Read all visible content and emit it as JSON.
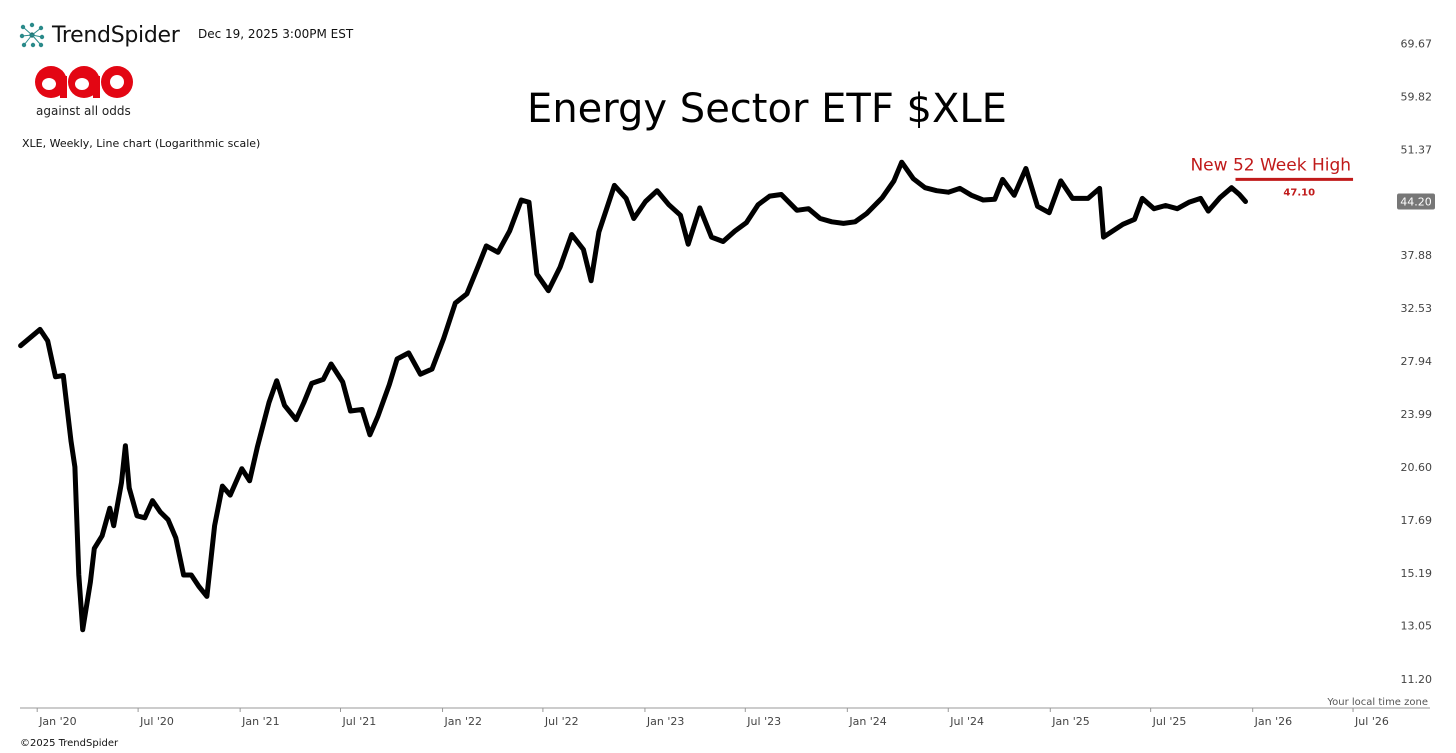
{
  "header": {
    "brand": "TrendSpider",
    "timestamp": "Dec 19, 2025 3:00PM EST",
    "logo_tagline": "against all odds"
  },
  "footer": {
    "timezone_note": "Your local time zone",
    "copyright": "©2025 TrendSpider"
  },
  "colors": {
    "line": "#000000",
    "annotation": "#c01a1a",
    "aao_red": "#e30613",
    "last_box": "#777777",
    "brand_teal": "#2a8a8a"
  },
  "chart_data": {
    "type": "line",
    "title": "Energy Sector ETF $XLE",
    "subtitle": "XLE, Weekly, Line chart (Logarithmic scale)",
    "y_scale": "log",
    "ylim": [
      10.3,
      74.5
    ],
    "xlim": [
      "2019-12-01",
      "2026-08-15"
    ],
    "y_ticks": [
      "69.67",
      "59.82",
      "51.37",
      "44.20",
      "37.88",
      "32.53",
      "27.94",
      "23.99",
      "20.60",
      "17.69",
      "15.19",
      "13.05",
      "11.20"
    ],
    "x_ticks": [
      {
        "label": "Jan '20",
        "date": "2020-01-01"
      },
      {
        "label": "Jul '20",
        "date": "2020-07-01"
      },
      {
        "label": "Jan '21",
        "date": "2021-01-01"
      },
      {
        "label": "Jul '21",
        "date": "2021-07-01"
      },
      {
        "label": "Jan '22",
        "date": "2022-01-01"
      },
      {
        "label": "Jul '22",
        "date": "2022-07-01"
      },
      {
        "label": "Jan '23",
        "date": "2023-01-01"
      },
      {
        "label": "Jul '23",
        "date": "2023-07-01"
      },
      {
        "label": "Jan '24",
        "date": "2024-01-01"
      },
      {
        "label": "Jul '24",
        "date": "2024-07-01"
      },
      {
        "label": "Jan '25",
        "date": "2025-01-01"
      },
      {
        "label": "Jul '25",
        "date": "2025-07-01"
      },
      {
        "label": "Jan '26",
        "date": "2026-01-01"
      },
      {
        "label": "Jul '26",
        "date": "2026-07-01"
      }
    ],
    "last_value": "44.20",
    "annotation": {
      "text": "New 52 Week High",
      "value_label": "47.10",
      "value": 47.1,
      "x_start": "2025-12-01",
      "x_end": "2026-07-01"
    },
    "series": [
      {
        "points": [
          [
            "2019-12-02",
            29.2
          ],
          [
            "2020-01-06",
            30.6
          ],
          [
            "2020-01-20",
            29.6
          ],
          [
            "2020-02-03",
            26.7
          ],
          [
            "2020-02-17",
            26.8
          ],
          [
            "2020-03-02",
            22.2
          ],
          [
            "2020-03-09",
            20.6
          ],
          [
            "2020-03-16",
            15.1
          ],
          [
            "2020-03-23",
            12.9
          ],
          [
            "2020-04-06",
            14.8
          ],
          [
            "2020-04-13",
            16.3
          ],
          [
            "2020-04-27",
            16.9
          ],
          [
            "2020-05-11",
            18.3
          ],
          [
            "2020-05-18",
            17.4
          ],
          [
            "2020-06-01",
            19.7
          ],
          [
            "2020-06-08",
            21.9
          ],
          [
            "2020-06-15",
            19.4
          ],
          [
            "2020-06-29",
            17.9
          ],
          [
            "2020-07-13",
            17.8
          ],
          [
            "2020-07-27",
            18.7
          ],
          [
            "2020-08-10",
            18.1
          ],
          [
            "2020-08-24",
            17.7
          ],
          [
            "2020-09-07",
            16.8
          ],
          [
            "2020-09-21",
            15.1
          ],
          [
            "2020-10-05",
            15.1
          ],
          [
            "2020-10-19",
            14.6
          ],
          [
            "2020-11-02",
            14.2
          ],
          [
            "2020-11-16",
            17.4
          ],
          [
            "2020-11-30",
            19.5
          ],
          [
            "2020-12-14",
            19.0
          ],
          [
            "2021-01-04",
            20.5
          ],
          [
            "2021-01-18",
            19.8
          ],
          [
            "2021-02-01",
            21.8
          ],
          [
            "2021-02-22",
            24.8
          ],
          [
            "2021-03-08",
            26.4
          ],
          [
            "2021-03-22",
            24.6
          ],
          [
            "2021-04-12",
            23.6
          ],
          [
            "2021-04-26",
            24.8
          ],
          [
            "2021-05-10",
            26.2
          ],
          [
            "2021-05-31",
            26.5
          ],
          [
            "2021-06-14",
            27.7
          ],
          [
            "2021-07-05",
            26.3
          ],
          [
            "2021-07-19",
            24.2
          ],
          [
            "2021-08-09",
            24.3
          ],
          [
            "2021-08-23",
            22.6
          ],
          [
            "2021-09-06",
            23.8
          ],
          [
            "2021-09-27",
            26.1
          ],
          [
            "2021-10-11",
            28.1
          ],
          [
            "2021-11-01",
            28.6
          ],
          [
            "2021-11-22",
            26.9
          ],
          [
            "2021-12-13",
            27.3
          ],
          [
            "2022-01-03",
            29.8
          ],
          [
            "2022-01-24",
            33.0
          ],
          [
            "2022-02-14",
            33.9
          ],
          [
            "2022-03-07",
            36.8
          ],
          [
            "2022-03-21",
            38.9
          ],
          [
            "2022-04-11",
            38.2
          ],
          [
            "2022-05-02",
            40.6
          ],
          [
            "2022-05-23",
            44.4
          ],
          [
            "2022-06-06",
            44.1
          ],
          [
            "2022-06-20",
            35.9
          ],
          [
            "2022-07-11",
            34.2
          ],
          [
            "2022-08-01",
            36.6
          ],
          [
            "2022-08-22",
            40.2
          ],
          [
            "2022-09-12",
            38.5
          ],
          [
            "2022-09-26",
            35.2
          ],
          [
            "2022-10-10",
            40.5
          ],
          [
            "2022-11-07",
            46.3
          ],
          [
            "2022-11-28",
            44.6
          ],
          [
            "2022-12-12",
            42.1
          ],
          [
            "2023-01-02",
            44.2
          ],
          [
            "2023-01-23",
            45.6
          ],
          [
            "2023-02-13",
            43.8
          ],
          [
            "2023-03-06",
            42.5
          ],
          [
            "2023-03-20",
            39.1
          ],
          [
            "2023-04-10",
            43.4
          ],
          [
            "2023-05-01",
            39.9
          ],
          [
            "2023-05-22",
            39.4
          ],
          [
            "2023-06-12",
            40.6
          ],
          [
            "2023-07-03",
            41.6
          ],
          [
            "2023-07-24",
            43.8
          ],
          [
            "2023-08-14",
            44.9
          ],
          [
            "2023-09-04",
            45.1
          ],
          [
            "2023-10-02",
            43.1
          ],
          [
            "2023-10-23",
            43.3
          ],
          [
            "2023-11-13",
            42.1
          ],
          [
            "2023-12-04",
            41.7
          ],
          [
            "2023-12-25",
            41.5
          ],
          [
            "2024-01-15",
            41.7
          ],
          [
            "2024-02-05",
            42.7
          ],
          [
            "2024-03-04",
            44.7
          ],
          [
            "2024-03-25",
            46.9
          ],
          [
            "2024-04-08",
            49.5
          ],
          [
            "2024-04-29",
            47.2
          ],
          [
            "2024-05-20",
            46.0
          ],
          [
            "2024-06-10",
            45.6
          ],
          [
            "2024-07-01",
            45.4
          ],
          [
            "2024-07-22",
            45.9
          ],
          [
            "2024-08-12",
            45.0
          ],
          [
            "2024-09-02",
            44.4
          ],
          [
            "2024-09-23",
            44.5
          ],
          [
            "2024-10-07",
            47.1
          ],
          [
            "2024-10-28",
            45.0
          ],
          [
            "2024-11-18",
            48.6
          ],
          [
            "2024-12-09",
            43.6
          ],
          [
            "2024-12-30",
            42.8
          ],
          [
            "2025-01-20",
            46.9
          ],
          [
            "2025-02-10",
            44.6
          ],
          [
            "2025-03-10",
            44.6
          ],
          [
            "2025-03-31",
            45.9
          ],
          [
            "2025-04-07",
            39.9
          ],
          [
            "2025-04-21",
            40.5
          ],
          [
            "2025-05-12",
            41.4
          ],
          [
            "2025-06-02",
            42.0
          ],
          [
            "2025-06-16",
            44.6
          ],
          [
            "2025-07-07",
            43.3
          ],
          [
            "2025-07-28",
            43.7
          ],
          [
            "2025-08-18",
            43.3
          ],
          [
            "2025-09-08",
            44.1
          ],
          [
            "2025-09-29",
            44.6
          ],
          [
            "2025-10-13",
            43.0
          ],
          [
            "2025-11-03",
            44.7
          ],
          [
            "2025-11-24",
            46.0
          ],
          [
            "2025-12-08",
            45.1
          ],
          [
            "2025-12-19",
            44.2
          ]
        ]
      }
    ]
  }
}
